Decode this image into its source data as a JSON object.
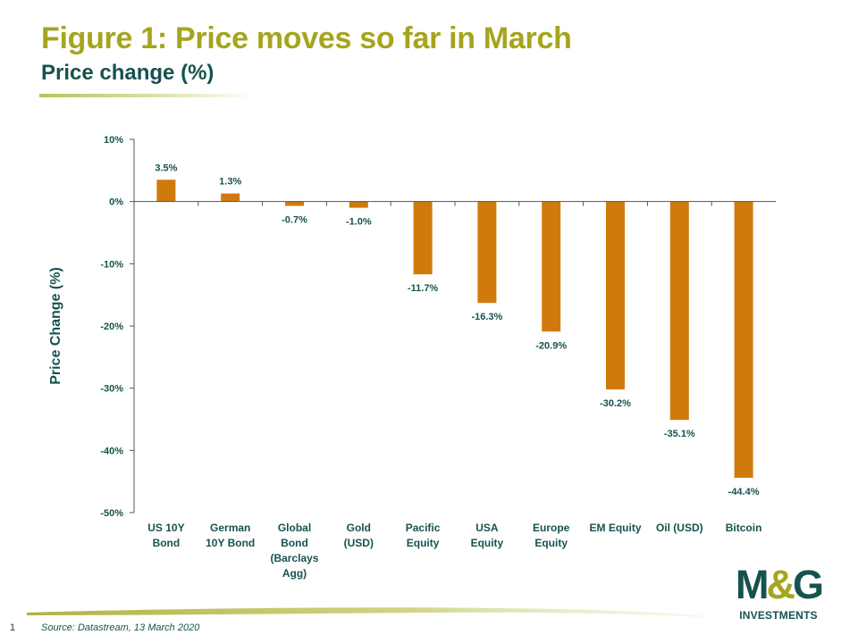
{
  "page": {
    "title": "Figure 1: Price moves so far in March",
    "subtitle": "Price change (%)",
    "page_number": "1",
    "source": "Source: Datastream, 13 March 2020"
  },
  "logo": {
    "mark_left": "M",
    "mark_amp": "&",
    "mark_right": "G",
    "word": "INVESTMENTS"
  },
  "colors": {
    "title": "#a5a51e",
    "subtitle": "#16524f",
    "bar": "#d07a0e",
    "axis": "#555555"
  },
  "chart_data": {
    "type": "bar",
    "ylabel": "Price Change (%)",
    "xlabel": "",
    "ylim": [
      -50,
      10
    ],
    "yticks": [
      10,
      0,
      -10,
      -20,
      -30,
      -40,
      -50
    ],
    "ytick_labels": [
      "10%",
      "0%",
      "-10%",
      "-20%",
      "-30%",
      "-40%",
      "-50%"
    ],
    "grid": false,
    "legend": "none",
    "categories": [
      [
        "US 10Y",
        "Bond"
      ],
      [
        "German",
        "10Y Bond"
      ],
      [
        "Global",
        "Bond",
        "(Barclays",
        "Agg)"
      ],
      [
        "Gold",
        "(USD)"
      ],
      [
        "Pacific",
        "Equity"
      ],
      [
        "USA",
        "Equity"
      ],
      [
        "Europe",
        "Equity"
      ],
      [
        "EM Equity"
      ],
      [
        "Oil (USD)"
      ],
      [
        "Bitcoin"
      ]
    ],
    "values": [
      3.5,
      1.3,
      -0.7,
      -1.0,
      -11.7,
      -16.3,
      -20.9,
      -30.2,
      -35.1,
      -44.4
    ],
    "data_labels": [
      "3.5%",
      "1.3%",
      "-0.7%",
      "-1.0%",
      "-11.7%",
      "-16.3%",
      "-20.9%",
      "-30.2%",
      "-35.1%",
      "-44.4%"
    ]
  }
}
